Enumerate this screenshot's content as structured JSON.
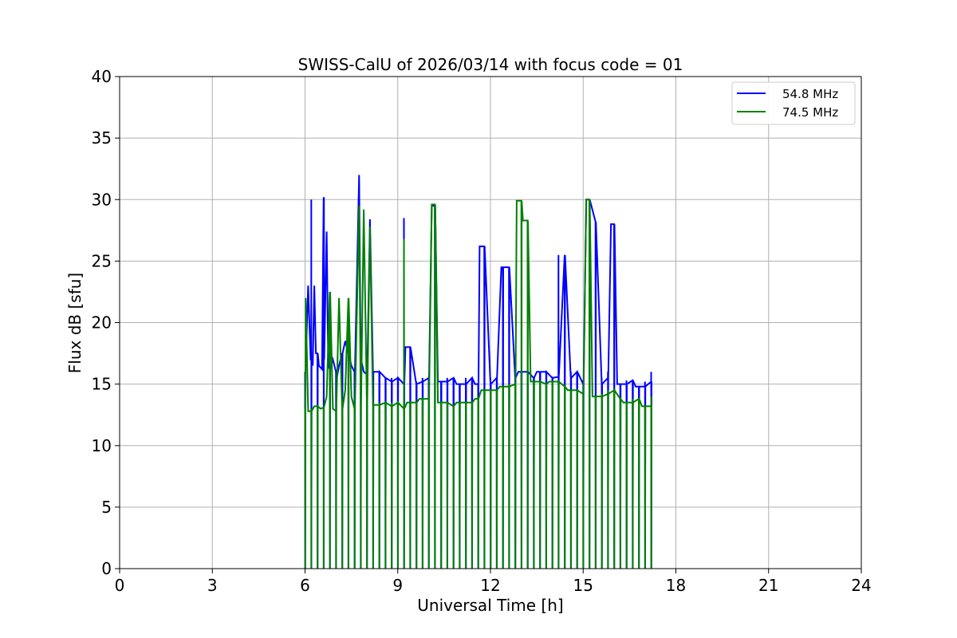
{
  "chart_data": {
    "type": "line",
    "title": "SWISS-CalU of 2026/03/14 with focus code = 01",
    "xlabel": "Universal Time [h]",
    "ylabel": "Flux dB [sfu]",
    "xlim": [
      0,
      24
    ],
    "ylim": [
      0,
      40
    ],
    "xticks": [
      0,
      3,
      6,
      9,
      12,
      15,
      18,
      21,
      24
    ],
    "yticks": [
      0,
      5,
      10,
      15,
      20,
      25,
      30,
      35,
      40
    ],
    "xtick_labels": [
      "0",
      "3",
      "6",
      "9",
      "12",
      "15",
      "18",
      "21",
      "24"
    ],
    "ytick_labels": [
      "0",
      "5",
      "10",
      "15",
      "20",
      "25",
      "30",
      "35",
      "40"
    ],
    "grid": true,
    "legend_position": "upper-right",
    "series": [
      {
        "name": "54.8 MHz",
        "color": "#0000ff",
        "x": [
          6.0,
          6.02,
          6.1,
          6.18,
          6.2,
          6.25,
          6.3,
          6.35,
          6.45,
          6.55,
          6.6,
          6.62,
          6.7,
          6.75,
          6.8,
          6.9,
          7.0,
          7.05,
          7.1,
          7.2,
          7.3,
          7.4,
          7.5,
          7.6,
          7.75,
          7.8,
          7.9,
          8.0,
          8.1,
          8.2,
          8.4,
          8.6,
          8.8,
          9.0,
          9.2,
          9.25,
          9.4,
          9.6,
          9.8,
          10.0,
          10.1,
          10.3,
          10.6,
          10.9,
          11.2,
          11.5,
          11.65,
          11.8,
          12.0,
          12.2,
          12.35,
          12.6,
          12.9,
          13.2,
          13.5,
          13.8,
          14.0,
          14.2,
          14.4,
          14.6,
          14.8,
          15.0,
          15.1,
          15.2,
          15.4,
          15.6,
          15.8,
          15.9,
          16.1,
          16.4,
          16.7,
          17.0,
          17.2
        ],
        "y": [
          16,
          16.5,
          23,
          17,
          30,
          16.5,
          23,
          17.5,
          16.5,
          16.2,
          30.2,
          17,
          27.4,
          16.5,
          16.2,
          17,
          16,
          15.8,
          16.5,
          17.5,
          18.5,
          17.5,
          16.5,
          16,
          32,
          17,
          16,
          15.8,
          28.4,
          16,
          15.5,
          15.2,
          15.5,
          15,
          28.5,
          18,
          15,
          15.2,
          15.5,
          15.5,
          29.5,
          15.2,
          15.5,
          15,
          15.5,
          15,
          26.2,
          15,
          15.5,
          15.3,
          24.5,
          15.5,
          16,
          15.5,
          16,
          15.5,
          15.6,
          25.5,
          15.5,
          16,
          15,
          15.3,
          30,
          28.2,
          15,
          15.5,
          16,
          28,
          15,
          15.3,
          14.8,
          15.2,
          16
        ]
      },
      {
        "name": "74.5 MHz",
        "color": "#008000",
        "x": [
          6.0,
          6.02,
          6.1,
          6.2,
          6.3,
          6.4,
          6.5,
          6.6,
          6.7,
          6.8,
          6.9,
          7.0,
          7.1,
          7.2,
          7.3,
          7.4,
          7.5,
          7.6,
          7.75,
          7.8,
          7.9,
          8.0,
          8.1,
          8.2,
          8.4,
          8.6,
          8.8,
          9.0,
          9.2,
          9.3,
          9.5,
          9.7,
          10.0,
          10.1,
          10.3,
          10.6,
          10.9,
          11.2,
          11.5,
          11.7,
          12.0,
          12.3,
          12.6,
          12.85,
          13.0,
          13.05,
          13.3,
          13.6,
          13.9,
          14.2,
          14.5,
          14.8,
          15.0,
          15.1,
          15.3,
          15.6,
          15.8,
          16.0,
          16.3,
          16.6,
          16.9,
          17.2
        ],
        "y": [
          13,
          22,
          12.8,
          13,
          13.2,
          12.8,
          13,
          13.1,
          14,
          22.5,
          13,
          12.8,
          22,
          13,
          14.5,
          22,
          14,
          13,
          29.5,
          13.2,
          29.2,
          13.5,
          27.8,
          13.3,
          13.5,
          13.2,
          13.5,
          13,
          26.8,
          13.5,
          13.5,
          13.8,
          13.7,
          29.6,
          13.5,
          13.2,
          13.5,
          13.5,
          13.8,
          14.5,
          14.5,
          14.8,
          15,
          29.9,
          15,
          28.3,
          15.2,
          15,
          15.2,
          14.8,
          14.5,
          14.2,
          14.2,
          30,
          14,
          14.2,
          14.5,
          13.8,
          13.5,
          13.8,
          13.2,
          14
        ]
      }
    ]
  }
}
